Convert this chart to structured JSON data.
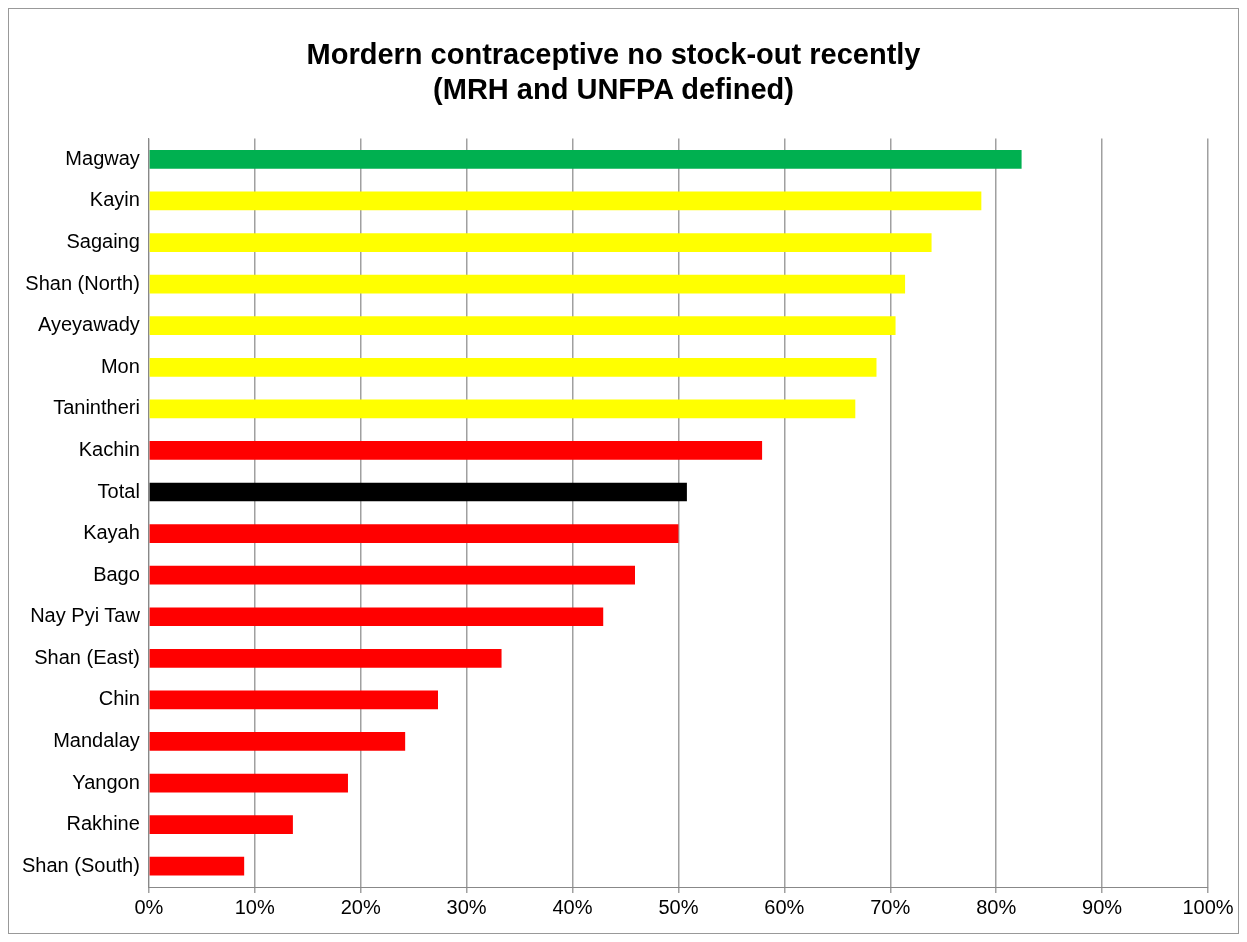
{
  "chart_data": {
    "type": "bar",
    "orientation": "horizontal",
    "title": "Mordern contraceptive no stock-out recently\n(MRH and UNFPA defined)",
    "categories": [
      "Magway",
      "Kayin",
      "Sagaing",
      "Shan (North)",
      "Ayeyawady",
      "Mon",
      "Tanintheri",
      "Kachin",
      "Total",
      "Kayah",
      "Bago",
      "Nay Pyi Taw",
      "Shan (East)",
      "Chin",
      "Mandalay",
      "Yangon",
      "Rakhine",
      "Shan (South)"
    ],
    "values": [
      82.4,
      78.6,
      73.9,
      71.4,
      70.5,
      68.7,
      66.7,
      57.9,
      50.8,
      50.0,
      45.9,
      42.9,
      33.3,
      27.3,
      24.2,
      18.8,
      13.6,
      9.0
    ],
    "colors": [
      "#00b050",
      "#ffff00",
      "#ffff00",
      "#ffff00",
      "#ffff00",
      "#ffff00",
      "#ffff00",
      "#ff0000",
      "#000000",
      "#ff0000",
      "#ff0000",
      "#ff0000",
      "#ff0000",
      "#ff0000",
      "#ff0000",
      "#ff0000",
      "#ff0000",
      "#ff0000"
    ],
    "xlim": [
      0,
      100
    ],
    "xticks": [
      {
        "value": 0,
        "label": "0%"
      },
      {
        "value": 10,
        "label": "10%"
      },
      {
        "value": 20,
        "label": "20%"
      },
      {
        "value": 30,
        "label": "30%"
      },
      {
        "value": 40,
        "label": "40%"
      },
      {
        "value": 50,
        "label": "50%"
      },
      {
        "value": 60,
        "label": "60%"
      },
      {
        "value": 70,
        "label": "70%"
      },
      {
        "value": 80,
        "label": "80%"
      },
      {
        "value": 90,
        "label": "90%"
      },
      {
        "value": 100,
        "label": "100%"
      }
    ],
    "grid": "x",
    "legend": false
  }
}
